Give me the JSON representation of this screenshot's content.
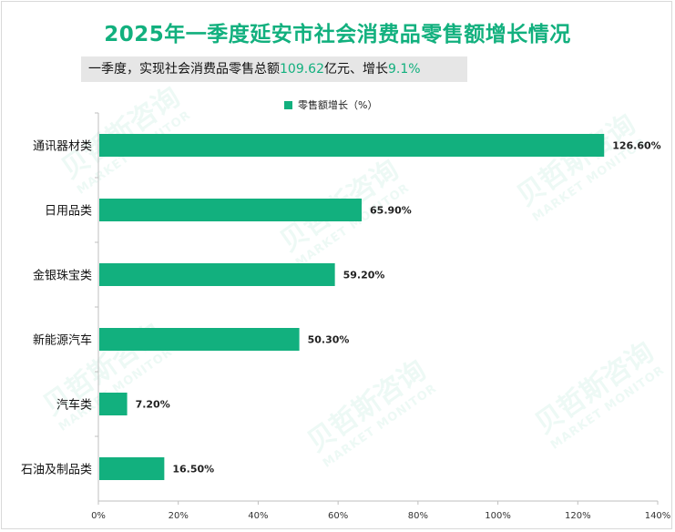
{
  "title": "2025年一季度延安市社会消费品零售额增长情况",
  "subtitle": {
    "prefix": "一季度，实现社会消费品零售总额",
    "amount": "109.62",
    "middle": "亿元、增长",
    "growth": "9.1%"
  },
  "watermark": {
    "brand": "贝哲斯咨询",
    "tagline": "MARKET MONITOR"
  },
  "colors": {
    "accent": "#12b07e",
    "bar": "#12b07e"
  },
  "chart_data": {
    "type": "bar",
    "orientation": "horizontal",
    "title": "2025年一季度延安市社会消费品零售额增长情况",
    "categories": [
      "通讯器材类",
      "日用品类",
      "金银珠宝类",
      "新能源汽车",
      "汽车类",
      "石油及制品类"
    ],
    "series": [
      {
        "name": "零售额增长（%）",
        "values": [
          126.6,
          65.9,
          59.2,
          50.3,
          7.2,
          16.5
        ],
        "labels": [
          "126.60%",
          "65.90%",
          "59.20%",
          "50.30%",
          "7.20%",
          "16.50%"
        ]
      }
    ],
    "legend_label": "零售额增长（%）",
    "legend_position": "top-center",
    "xlim": [
      0,
      140
    ],
    "xticks": [
      0,
      20,
      40,
      60,
      80,
      100,
      120,
      140
    ],
    "xtick_labels": [
      "0%",
      "20%",
      "40%",
      "60%",
      "80%",
      "100%",
      "120%",
      "140%"
    ],
    "grid": false
  }
}
